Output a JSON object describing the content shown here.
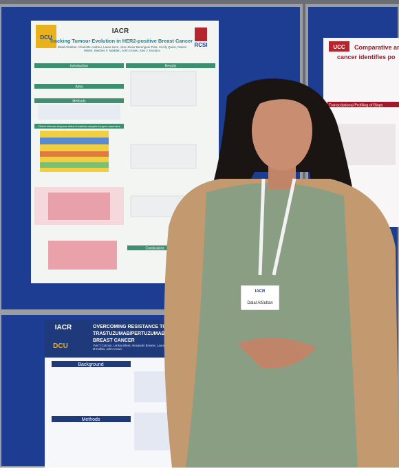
{
  "poster_main": {
    "logo_left": "DCU",
    "logo_center": "IACR",
    "logo_right": "RCSI",
    "title": "Tracking Tumour Evolution in HER2-positive Breast Cancer",
    "authors": "Dalal AlSultan, Charlotte Andrieu, Laura Ivers, Jose Javier Berenguer Pina, Cecily Quinn, Naomi Walsh, Stephen F. Madden, John Crown, Alex J. Eustace",
    "sections": [
      "Introduction",
      "Aims",
      "Methods",
      "Clinical data and response status of matched samples in paper responders",
      "Results",
      "Conclusions"
    ]
  },
  "poster_lower": {
    "logo_top": "IACR",
    "logo_bottom": "DCU",
    "title_lines": [
      "OVERCOMING RESISTANCE TO",
      "TRASTUZUMAB/PERTUZUMAB IN HER2-P",
      "BREAST CANCER"
    ],
    "authors": "Yvel T Connon, Lorissa Bless, Alexander Browne, Laura Ivers, Denis M Collins, John Crown",
    "sections": [
      "Background",
      "Methods"
    ]
  },
  "poster_right": {
    "logo": "UCC",
    "title_lines": [
      "Comparative ana",
      "cancer identifies po"
    ],
    "section": "Transcriptional Profiling of Biops"
  },
  "badge": {
    "header": "IACR",
    "name": "Dalal AlSultan"
  }
}
